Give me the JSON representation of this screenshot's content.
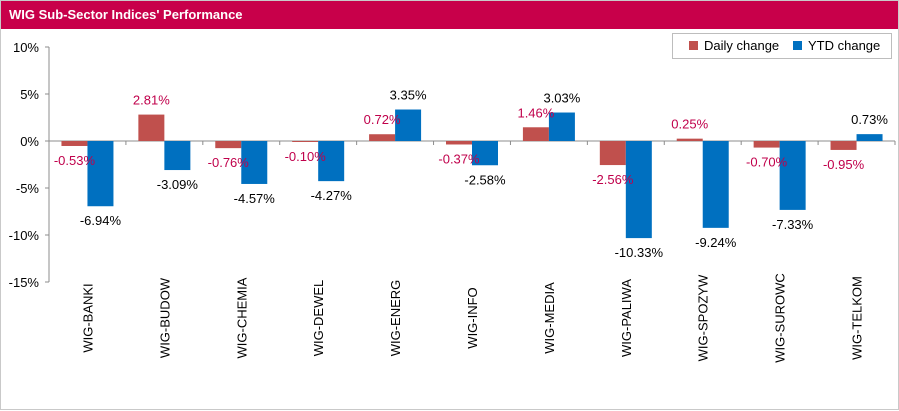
{
  "title": "WIG Sub-Sector Indices' Performance",
  "colors": {
    "title_bg": "#c8004a",
    "daily": "#c0504d",
    "ytd": "#0070c0",
    "daily_label": "#c0004b",
    "ytd_label": "#000000"
  },
  "chart_data": {
    "type": "bar",
    "title": "WIG Sub-Sector Indices' Performance",
    "categories": [
      "WIG-BANKI",
      "WIG-BUDOW",
      "WIG-CHEMIA",
      "WIG-DEWEL",
      "WIG-ENERG",
      "WIG-INFO",
      "WIG-MEDIA",
      "WIG-PALIWA",
      "WIG-SPOZYW",
      "WIG-SUROWC",
      "WIG-TELKOM"
    ],
    "series": [
      {
        "name": "Daily change",
        "values": [
          -0.53,
          2.81,
          -0.76,
          -0.1,
          0.72,
          -0.37,
          1.46,
          -2.56,
          0.25,
          -0.7,
          -0.95
        ],
        "labels": [
          "-0.53%",
          "2.81%",
          "-0.76%",
          "-0.10%",
          "0.72%",
          "-0.37%",
          "1.46%",
          "-2.56%",
          "0.25%",
          "-0.70%",
          "-0.95%"
        ]
      },
      {
        "name": "YTD change",
        "values": [
          -6.94,
          -3.09,
          -4.57,
          -4.27,
          3.35,
          -2.58,
          3.03,
          -10.33,
          -9.24,
          -7.33,
          0.73
        ],
        "labels": [
          "-6.94%",
          "-3.09%",
          "-4.57%",
          "-4.27%",
          "3.35%",
          "-2.58%",
          "3.03%",
          "-10.33%",
          "-9.24%",
          "-7.33%",
          "0.73%"
        ]
      }
    ],
    "yticks": [
      10,
      5,
      0,
      -5,
      -10,
      -15
    ],
    "ytick_labels": [
      "10%",
      "5%",
      "0%",
      "-5%",
      "-10%",
      "-15%"
    ],
    "ylim": [
      -15,
      10
    ],
    "grid": false,
    "legend_position": "top-right"
  }
}
